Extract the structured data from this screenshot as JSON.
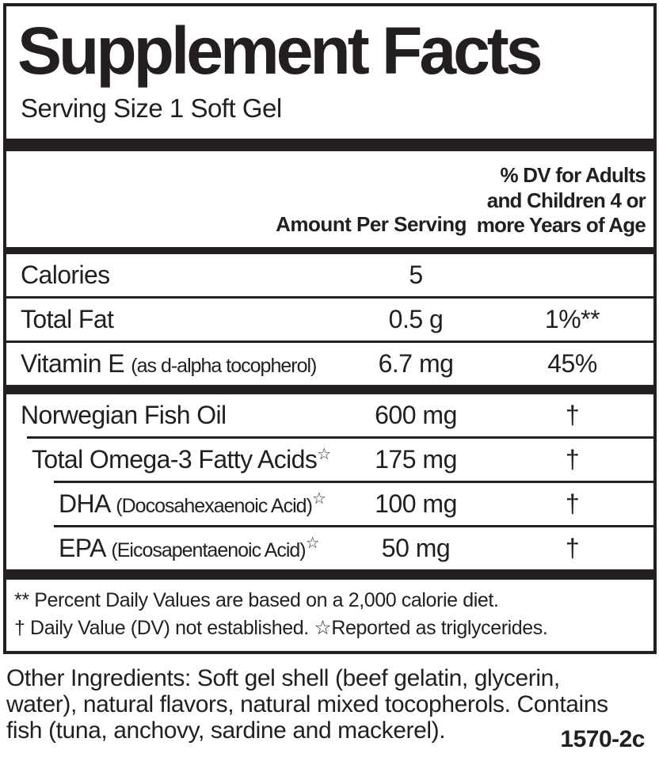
{
  "colors": {
    "ink": "#231f20",
    "background": "#ffffff"
  },
  "panel": {
    "title": "Supplement Facts",
    "serving_size": "Serving Size 1 Soft Gel",
    "header": {
      "amount_col": "Amount Per Serving",
      "dv_col_lines": [
        "% DV for Adults",
        "and Children 4 or",
        "more Years of Age"
      ]
    },
    "rows": [
      {
        "name": "Calories",
        "note": "",
        "star": "",
        "amount": "5",
        "dv": ""
      },
      {
        "name": "Total Fat",
        "note": "",
        "star": "",
        "amount": "0.5 g",
        "dv": "1%**"
      },
      {
        "name": "Vitamin E",
        "note": "(as d-alpha tocopherol)",
        "star": "",
        "amount": "6.7 mg",
        "dv": "45%"
      },
      {
        "name": "Norwegian Fish Oil",
        "note": "",
        "star": "",
        "amount": "600 mg",
        "dv": "†"
      },
      {
        "name": "Total Omega-3 Fatty Acids",
        "note": "",
        "star": "☆",
        "amount": "175 mg",
        "dv": "†"
      },
      {
        "name": "DHA",
        "note": "(Docosahexaenoic Acid)",
        "star": "☆",
        "amount": "100 mg",
        "dv": "†"
      },
      {
        "name": "EPA",
        "note": "(Eicosapentaenoic Acid)",
        "star": "☆",
        "amount": "50 mg",
        "dv": "†"
      }
    ],
    "footnote_lines": [
      "** Percent Daily Values are based on a 2,000 calorie diet.",
      "† Daily Value (DV) not established. ☆Reported as triglycerides."
    ]
  },
  "below": {
    "other_ingredients_lines": [
      "Other Ingredients: Soft gel shell (beef gelatin, glycerin,",
      "water), natural flavors, natural mixed tocopherols. Contains",
      "fish (tuna, anchovy, sardine and mackerel)."
    ],
    "item_code": "1570-2c"
  }
}
